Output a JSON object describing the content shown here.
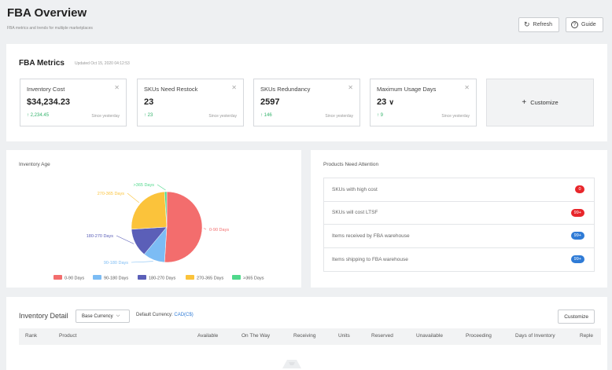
{
  "header": {
    "title": "FBA Overview",
    "subtitle": "FBA metrics and trends for multiple marketplaces",
    "refresh_label": "Refresh",
    "guide_label": "Guide"
  },
  "metrics": {
    "title": "FBA Metrics",
    "updated": "Updated Oct 15, 2020 04:12:53",
    "customize_label": "Customize",
    "cards": [
      {
        "label": "Inventory Cost",
        "value": "$34,234.23",
        "delta": "2,234.45",
        "since": "Since yesterday"
      },
      {
        "label": "SKUs Need Restock",
        "value": "23",
        "delta": "23",
        "since": "Since yesterday"
      },
      {
        "label": "SKUs Redundancy",
        "value": "2597",
        "delta": "146",
        "since": "Since yesterday"
      },
      {
        "label": "Maximum Usage Days",
        "value": "23",
        "delta": "9",
        "since": "Since yesterday"
      }
    ]
  },
  "inventory_age": {
    "title": "Inventory Age",
    "slices": [
      {
        "label": "0-90 Days",
        "color": "#f36d6d"
      },
      {
        "label": "90-180 Days",
        "color": "#7cbcf4"
      },
      {
        "label": "180-270 Days",
        "color": "#5b5fb8"
      },
      {
        "label": "270-365 Days",
        "color": "#fbc33b"
      },
      {
        "label": ">365 Days",
        "color": "#4fd88b"
      }
    ],
    "legend": [
      "0-90 Days",
      "90-180 Days",
      "180-270 Days",
      "270-365 Days",
      ">365 Days"
    ]
  },
  "chart_data": {
    "type": "pie",
    "categories": [
      "0-90 Days",
      "90-180 Days",
      "180-270 Days",
      "270-365 Days",
      ">365 Days"
    ],
    "values": [
      51,
      10,
      13,
      25,
      1
    ],
    "legend_position": "bottom"
  },
  "attention": {
    "title": "Products Need Attention",
    "items": [
      {
        "label": "SKUs with high cost",
        "badge": "0",
        "color": "#e8262b"
      },
      {
        "label": "SKUs will cost LTSF",
        "badge": "99+",
        "color": "#e8262b"
      },
      {
        "label": "Items received by FBA warehouse",
        "badge": "99+",
        "color": "#2f7bd6"
      },
      {
        "label": "Items shipping to FBA warehouse",
        "badge": "99+",
        "color": "#2f7bd6"
      }
    ]
  },
  "inventory_detail": {
    "title": "Inventory Detail",
    "currency_select": "Base Currency",
    "default_currency_label": "Default Currency:",
    "default_currency_value": "CAD(C$)",
    "customize_label": "Customize",
    "columns": [
      "Rank",
      "Product",
      "Available",
      "On The Way",
      "Receiving",
      "Units",
      "Reserved",
      "Unavailable",
      "Proceeding",
      "Days of Inventory",
      "Reple"
    ]
  }
}
